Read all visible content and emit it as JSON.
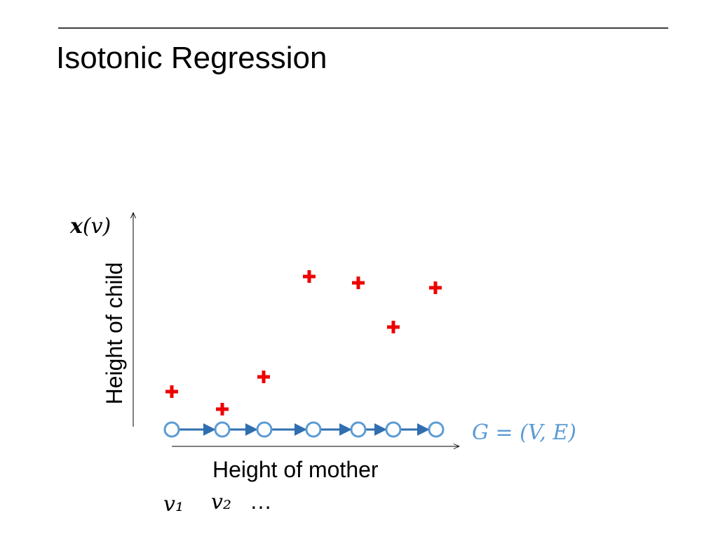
{
  "header": {
    "title": "Isotonic Regression"
  },
  "diagram": {
    "y_axis_label": "Height of child",
    "x_axis_label": "Height of mother",
    "y_variable": {
      "symbol": "x",
      "argument": "(v)"
    },
    "graph_label": "G = (V, E)",
    "node_labels": [
      "v₁",
      "v₂",
      "…"
    ]
  }
}
